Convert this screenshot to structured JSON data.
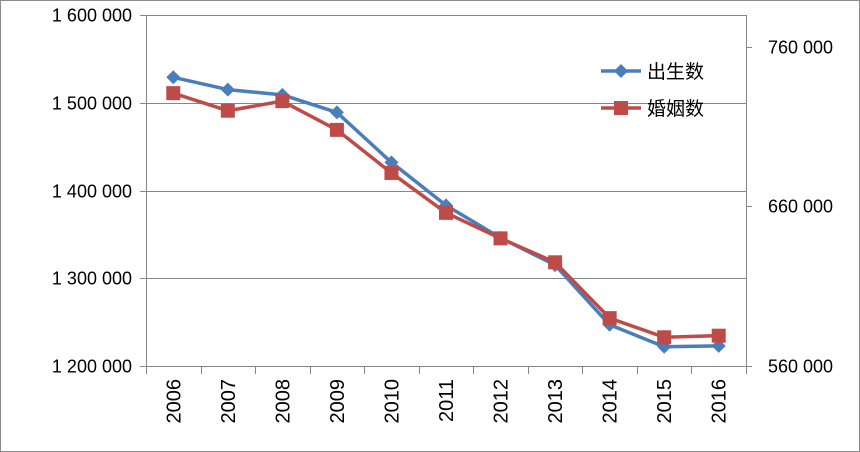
{
  "chart_data": {
    "type": "line",
    "title": "",
    "x": [
      "2006",
      "2007",
      "2008",
      "2009",
      "2010",
      "2011",
      "2012",
      "2013",
      "2014",
      "2015",
      "2016"
    ],
    "series": [
      {
        "name": "出生数",
        "axis": "left",
        "color": "#4a7ebb",
        "marker": "diamond",
        "values": [
          1529000,
          1515000,
          1509000,
          1489000,
          1432000,
          1383000,
          1346000,
          1315000,
          1247000,
          1222000,
          1223000
        ]
      },
      {
        "name": "婚姻数",
        "axis": "right",
        "color": "#be4b48",
        "marker": "square",
        "values": [
          731000,
          720000,
          726000,
          708000,
          681000,
          656000,
          640000,
          625000,
          590000,
          578000,
          579000
        ]
      }
    ],
    "y_left": {
      "lim": [
        1200000,
        1600000
      ],
      "ticks": [
        1200000,
        1300000,
        1400000,
        1500000,
        1600000
      ],
      "tick_labels": [
        "1 200 000",
        "1 300 000",
        "1 400 000",
        "1 500 000",
        "1 600 000"
      ]
    },
    "y_right": {
      "lim": [
        560000,
        780000
      ],
      "ticks": [
        560000,
        660000,
        760000
      ],
      "tick_labels": [
        "560 000",
        "660 000",
        "760 000"
      ]
    },
    "xlabel": "",
    "ylabel": "",
    "grid": true,
    "legend_position": "top-right"
  }
}
